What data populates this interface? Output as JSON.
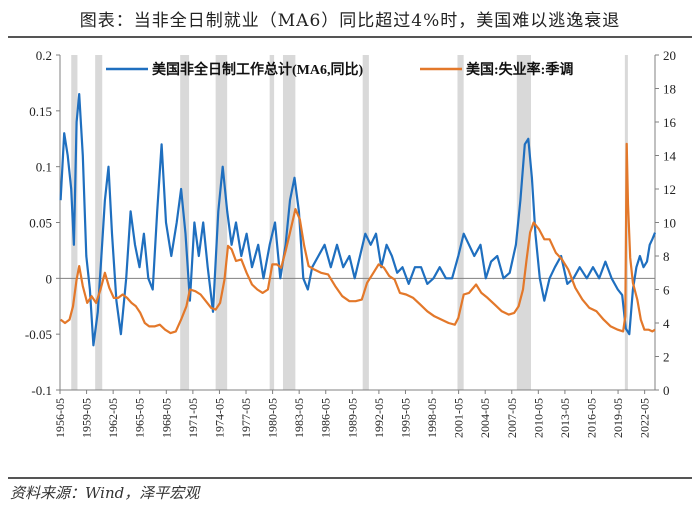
{
  "header": {
    "title": "图表：当非全日制就业（MA6）同比超过4%时，美国难以逃逸衰退"
  },
  "footer": {
    "source": "资料来源：Wind，泽平宏观"
  },
  "colors": {
    "part_time": "#1f6fbf",
    "unemployment": "#e3782a",
    "recession": "#d9d9d9",
    "axis": "#808080"
  },
  "chart_data": {
    "type": "line",
    "title": "当非全日制就业（MA6）同比超过4%时，美国难以逃逸衰退",
    "x_tick_labels": [
      "1956-05",
      "1959-05",
      "1962-05",
      "1965-05",
      "1968-05",
      "1971-05",
      "1974-05",
      "1977-05",
      "1980-05",
      "1983-05",
      "1986-05",
      "1989-05",
      "1992-05",
      "1995-05",
      "1998-05",
      "2001-05",
      "2004-05",
      "2007-05",
      "2010-05",
      "2013-05",
      "2016-05",
      "2019-05",
      "2022-05"
    ],
    "x_range": [
      1956.33,
      2023.5
    ],
    "left_axis": {
      "range": [
        -0.1,
        0.2
      ],
      "ticks": [
        -0.1,
        -0.05,
        0,
        0.05,
        0.1,
        0.15,
        0.2
      ],
      "tick_labels": [
        "-0.1",
        "-0.05",
        "0",
        "0.05",
        "0.1",
        "0.15",
        "0.2"
      ]
    },
    "right_axis": {
      "range": [
        0,
        20
      ],
      "ticks": [
        0,
        2,
        4,
        6,
        8,
        10,
        12,
        14,
        16,
        18,
        20
      ],
      "tick_labels": [
        "0",
        "2",
        "4",
        "6",
        "8",
        "10",
        "12",
        "14",
        "16",
        "18",
        "20"
      ]
    },
    "recessions": [
      [
        1957.6,
        1958.3
      ],
      [
        1960.3,
        1961.1
      ],
      [
        1969.9,
        1970.9
      ],
      [
        1973.9,
        1975.2
      ],
      [
        1980.0,
        1980.5
      ],
      [
        1981.5,
        1982.9
      ],
      [
        1990.5,
        1991.2
      ],
      [
        2001.2,
        2001.9
      ],
      [
        2007.9,
        2009.5
      ],
      [
        2020.1,
        2020.3
      ]
    ],
    "series": [
      {
        "name": "美国非全日制工作总计(MA6,同比)",
        "axis": "left",
        "points": [
          [
            1956.4,
            0.07
          ],
          [
            1956.8,
            0.13
          ],
          [
            1957.2,
            0.11
          ],
          [
            1957.6,
            0.08
          ],
          [
            1957.9,
            0.03
          ],
          [
            1958.2,
            0.14
          ],
          [
            1958.5,
            0.165
          ],
          [
            1958.9,
            0.11
          ],
          [
            1959.3,
            0.02
          ],
          [
            1959.7,
            -0.01
          ],
          [
            1960.1,
            -0.06
          ],
          [
            1960.6,
            -0.03
          ],
          [
            1961.0,
            0.02
          ],
          [
            1961.4,
            0.07
          ],
          [
            1961.8,
            0.1
          ],
          [
            1962.2,
            0.04
          ],
          [
            1962.7,
            -0.02
          ],
          [
            1963.2,
            -0.05
          ],
          [
            1963.8,
            0.0
          ],
          [
            1964.3,
            0.06
          ],
          [
            1964.8,
            0.03
          ],
          [
            1965.3,
            0.01
          ],
          [
            1965.8,
            0.04
          ],
          [
            1966.3,
            0.0
          ],
          [
            1966.8,
            -0.01
          ],
          [
            1967.3,
            0.06
          ],
          [
            1967.8,
            0.12
          ],
          [
            1968.3,
            0.05
          ],
          [
            1968.9,
            0.02
          ],
          [
            1969.5,
            0.05
          ],
          [
            1970.0,
            0.08
          ],
          [
            1970.5,
            0.04
          ],
          [
            1971.0,
            -0.02
          ],
          [
            1971.5,
            0.05
          ],
          [
            1972.0,
            0.02
          ],
          [
            1972.5,
            0.05
          ],
          [
            1973.0,
            0.01
          ],
          [
            1973.6,
            -0.03
          ],
          [
            1974.2,
            0.06
          ],
          [
            1974.7,
            0.1
          ],
          [
            1975.2,
            0.06
          ],
          [
            1975.7,
            0.03
          ],
          [
            1976.2,
            0.05
          ],
          [
            1976.8,
            0.02
          ],
          [
            1977.4,
            0.04
          ],
          [
            1978.0,
            0.01
          ],
          [
            1978.7,
            0.03
          ],
          [
            1979.3,
            0.0
          ],
          [
            1980.0,
            0.03
          ],
          [
            1980.6,
            0.05
          ],
          [
            1981.2,
            0.0
          ],
          [
            1981.8,
            0.03
          ],
          [
            1982.3,
            0.07
          ],
          [
            1982.8,
            0.09
          ],
          [
            1983.3,
            0.06
          ],
          [
            1983.8,
            0.0
          ],
          [
            1984.3,
            -0.01
          ],
          [
            1984.8,
            0.01
          ],
          [
            1985.5,
            0.02
          ],
          [
            1986.2,
            0.03
          ],
          [
            1986.9,
            0.01
          ],
          [
            1987.6,
            0.03
          ],
          [
            1988.3,
            0.01
          ],
          [
            1989.0,
            0.02
          ],
          [
            1989.6,
            0.0
          ],
          [
            1990.2,
            0.02
          ],
          [
            1990.8,
            0.04
          ],
          [
            1991.4,
            0.03
          ],
          [
            1992.0,
            0.04
          ],
          [
            1992.6,
            0.01
          ],
          [
            1993.2,
            0.03
          ],
          [
            1993.8,
            0.02
          ],
          [
            1994.4,
            0.005
          ],
          [
            1995.0,
            0.01
          ],
          [
            1995.7,
            -0.005
          ],
          [
            1996.4,
            0.01
          ],
          [
            1997.1,
            0.01
          ],
          [
            1997.8,
            -0.005
          ],
          [
            1998.5,
            0.0
          ],
          [
            1999.2,
            0.01
          ],
          [
            1999.9,
            0.0
          ],
          [
            2000.6,
            0.0
          ],
          [
            2001.3,
            0.02
          ],
          [
            2001.9,
            0.04
          ],
          [
            2002.5,
            0.03
          ],
          [
            2003.1,
            0.02
          ],
          [
            2003.8,
            0.03
          ],
          [
            2004.4,
            0.0
          ],
          [
            2005.0,
            0.015
          ],
          [
            2005.7,
            0.02
          ],
          [
            2006.4,
            0.0
          ],
          [
            2007.1,
            0.005
          ],
          [
            2007.8,
            0.03
          ],
          [
            2008.3,
            0.07
          ],
          [
            2008.8,
            0.12
          ],
          [
            2009.2,
            0.125
          ],
          [
            2009.6,
            0.09
          ],
          [
            2010.0,
            0.04
          ],
          [
            2010.5,
            0.0
          ],
          [
            2011.0,
            -0.02
          ],
          [
            2011.6,
            0.0
          ],
          [
            2012.2,
            0.01
          ],
          [
            2012.9,
            0.02
          ],
          [
            2013.6,
            -0.005
          ],
          [
            2014.3,
            0.0
          ],
          [
            2015.0,
            0.01
          ],
          [
            2015.8,
            0.0
          ],
          [
            2016.5,
            0.01
          ],
          [
            2017.2,
            0.0
          ],
          [
            2017.9,
            0.015
          ],
          [
            2018.6,
            0.0
          ],
          [
            2019.3,
            -0.01
          ],
          [
            2019.8,
            -0.015
          ],
          [
            2020.2,
            -0.045
          ],
          [
            2020.6,
            -0.05
          ],
          [
            2021.0,
            -0.01
          ],
          [
            2021.4,
            0.01
          ],
          [
            2021.8,
            0.02
          ],
          [
            2022.2,
            0.01
          ],
          [
            2022.6,
            0.015
          ],
          [
            2022.9,
            0.03
          ],
          [
            2023.2,
            0.035
          ],
          [
            2023.5,
            0.041
          ]
        ]
      },
      {
        "name": "美国:失业率:季调",
        "axis": "right",
        "points": [
          [
            1956.4,
            4.2
          ],
          [
            1956.9,
            4.0
          ],
          [
            1957.4,
            4.2
          ],
          [
            1957.8,
            5.0
          ],
          [
            1958.2,
            6.6
          ],
          [
            1958.5,
            7.4
          ],
          [
            1958.9,
            6.2
          ],
          [
            1959.4,
            5.2
          ],
          [
            1959.9,
            5.6
          ],
          [
            1960.4,
            5.2
          ],
          [
            1960.9,
            6.0
          ],
          [
            1961.4,
            7.0
          ],
          [
            1961.9,
            6.1
          ],
          [
            1962.4,
            5.5
          ],
          [
            1962.9,
            5.5
          ],
          [
            1963.4,
            5.7
          ],
          [
            1963.9,
            5.5
          ],
          [
            1964.4,
            5.2
          ],
          [
            1964.9,
            5.0
          ],
          [
            1965.4,
            4.6
          ],
          [
            1965.9,
            4.0
          ],
          [
            1966.4,
            3.8
          ],
          [
            1967.0,
            3.8
          ],
          [
            1967.6,
            3.9
          ],
          [
            1968.2,
            3.6
          ],
          [
            1968.8,
            3.4
          ],
          [
            1969.4,
            3.5
          ],
          [
            1970.0,
            4.2
          ],
          [
            1970.6,
            5.0
          ],
          [
            1971.0,
            6.0
          ],
          [
            1971.6,
            5.9
          ],
          [
            1972.2,
            5.7
          ],
          [
            1972.8,
            5.3
          ],
          [
            1973.4,
            4.9
          ],
          [
            1973.9,
            4.8
          ],
          [
            1974.4,
            5.2
          ],
          [
            1974.9,
            6.6
          ],
          [
            1975.3,
            8.6
          ],
          [
            1975.7,
            8.4
          ],
          [
            1976.2,
            7.7
          ],
          [
            1976.8,
            7.8
          ],
          [
            1977.4,
            7.0
          ],
          [
            1978.0,
            6.3
          ],
          [
            1978.6,
            6.0
          ],
          [
            1979.2,
            5.8
          ],
          [
            1979.8,
            6.0
          ],
          [
            1980.3,
            7.5
          ],
          [
            1980.8,
            7.5
          ],
          [
            1981.3,
            7.3
          ],
          [
            1981.8,
            8.3
          ],
          [
            1982.3,
            9.4
          ],
          [
            1982.9,
            10.8
          ],
          [
            1983.4,
            10.2
          ],
          [
            1983.9,
            8.6
          ],
          [
            1984.4,
            7.4
          ],
          [
            1985.0,
            7.2
          ],
          [
            1985.8,
            7.0
          ],
          [
            1986.6,
            6.9
          ],
          [
            1987.4,
            6.2
          ],
          [
            1988.2,
            5.6
          ],
          [
            1989.0,
            5.3
          ],
          [
            1989.7,
            5.3
          ],
          [
            1990.4,
            5.4
          ],
          [
            1991.0,
            6.4
          ],
          [
            1991.6,
            6.9
          ],
          [
            1992.3,
            7.5
          ],
          [
            1992.9,
            7.3
          ],
          [
            1993.5,
            6.8
          ],
          [
            1994.1,
            6.6
          ],
          [
            1994.7,
            5.8
          ],
          [
            1995.4,
            5.7
          ],
          [
            1996.2,
            5.5
          ],
          [
            1997.0,
            5.1
          ],
          [
            1997.8,
            4.7
          ],
          [
            1998.6,
            4.4
          ],
          [
            1999.4,
            4.2
          ],
          [
            2000.2,
            4.0
          ],
          [
            2000.9,
            3.9
          ],
          [
            2001.3,
            4.3
          ],
          [
            2001.9,
            5.7
          ],
          [
            2002.5,
            5.8
          ],
          [
            2003.3,
            6.3
          ],
          [
            2003.9,
            5.8
          ],
          [
            2004.6,
            5.5
          ],
          [
            2005.4,
            5.1
          ],
          [
            2006.2,
            4.7
          ],
          [
            2007.0,
            4.5
          ],
          [
            2007.6,
            4.6
          ],
          [
            2008.1,
            5.0
          ],
          [
            2008.6,
            6.0
          ],
          [
            2009.0,
            7.8
          ],
          [
            2009.4,
            9.4
          ],
          [
            2009.8,
            10.0
          ],
          [
            2010.4,
            9.6
          ],
          [
            2011.0,
            9.0
          ],
          [
            2011.6,
            9.0
          ],
          [
            2012.3,
            8.2
          ],
          [
            2013.0,
            7.8
          ],
          [
            2013.7,
            7.2
          ],
          [
            2014.5,
            6.1
          ],
          [
            2015.3,
            5.4
          ],
          [
            2016.1,
            4.9
          ],
          [
            2016.9,
            4.7
          ],
          [
            2017.7,
            4.2
          ],
          [
            2018.5,
            3.8
          ],
          [
            2019.3,
            3.6
          ],
          [
            2019.9,
            3.5
          ],
          [
            2020.15,
            4.4
          ],
          [
            2020.3,
            14.7
          ],
          [
            2020.45,
            11.1
          ],
          [
            2020.7,
            7.9
          ],
          [
            2021.0,
            6.4
          ],
          [
            2021.5,
            5.4
          ],
          [
            2021.9,
            4.2
          ],
          [
            2022.3,
            3.6
          ],
          [
            2022.8,
            3.6
          ],
          [
            2023.2,
            3.5
          ],
          [
            2023.5,
            3.6
          ]
        ]
      }
    ]
  }
}
